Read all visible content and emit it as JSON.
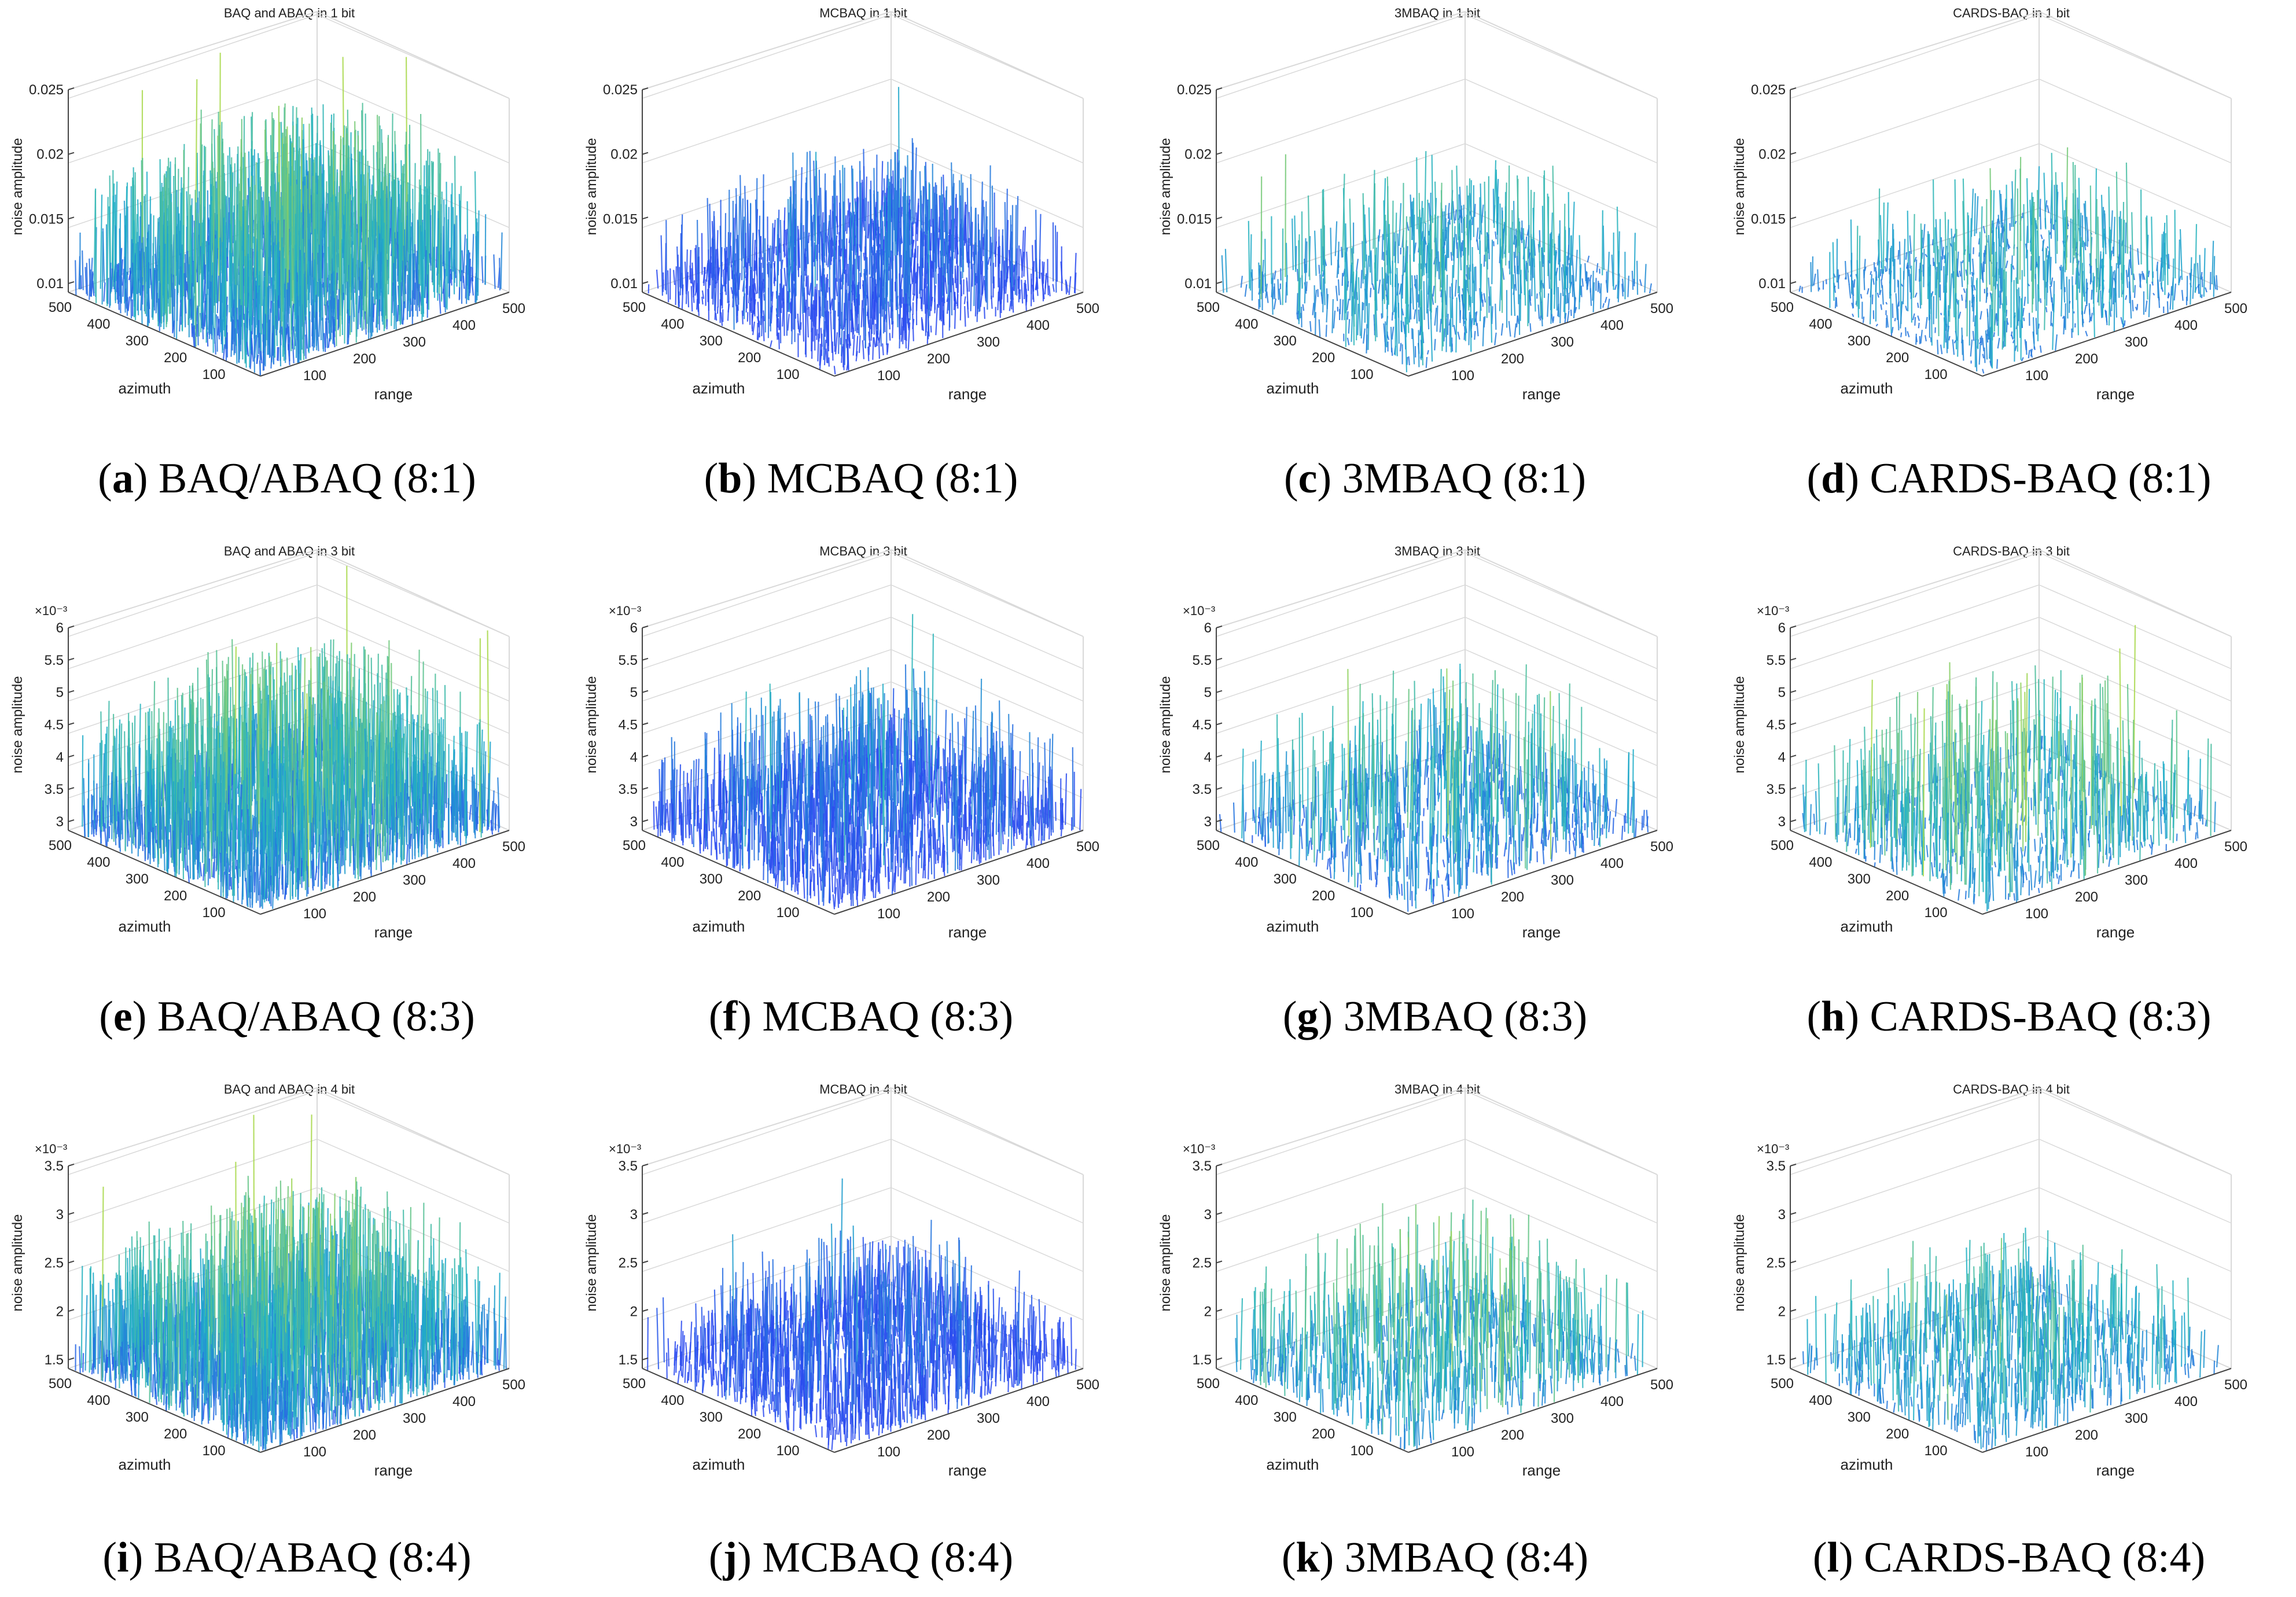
{
  "figure": {
    "colors": {
      "low": "#2b4bf0",
      "mid": "#1fb1c6",
      "high": "#a8d84a",
      "axis": "#444444",
      "grid": "#d9d9d9"
    },
    "axis_labels": {
      "x": "range",
      "y": "azimuth",
      "z": "noise amplitude"
    },
    "x_ticks": [
      "100",
      "200",
      "300",
      "400",
      "500"
    ],
    "y_ticks": [
      "100",
      "200",
      "300",
      "400",
      "500"
    ],
    "rows": [
      {
        "exponent": "",
        "z_ticks": [
          "0.01",
          "0.015",
          "0.02",
          "0.025"
        ],
        "panels": [
          {
            "letter": "a",
            "caption": "BAQ/ABAQ (8:1)",
            "title": "BAQ and ABAQ in 1 bit"
          },
          {
            "letter": "b",
            "caption": "MCBAQ (8:1)",
            "title": "MCBAQ in 1 bit"
          },
          {
            "letter": "c",
            "caption": "3MBAQ (8:1)",
            "title": "3MBAQ in 1 bit"
          },
          {
            "letter": "d",
            "caption": "CARDS-BAQ (8:1)",
            "title": "CARDS-BAQ in 1 bit"
          }
        ]
      },
      {
        "exponent": "×10⁻³",
        "z_ticks": [
          "3",
          "3.5",
          "4",
          "4.5",
          "5",
          "5.5",
          "6"
        ],
        "panels": [
          {
            "letter": "e",
            "caption": "BAQ/ABAQ (8:3)",
            "title": "BAQ and ABAQ in 3 bit"
          },
          {
            "letter": "f",
            "caption": "MCBAQ (8:3)",
            "title": "MCBAQ in 3 bit"
          },
          {
            "letter": "g",
            "caption": "3MBAQ (8:3)",
            "title": "3MBAQ in 3 bit"
          },
          {
            "letter": "h",
            "caption": "CARDS-BAQ (8:3)",
            "title": "CARDS-BAQ in 3 bit"
          }
        ]
      },
      {
        "exponent": "×10⁻³",
        "z_ticks": [
          "1.5",
          "2",
          "2.5",
          "3",
          "3.5"
        ],
        "panels": [
          {
            "letter": "i",
            "caption": "BAQ/ABAQ (8:4)",
            "title": "BAQ and ABAQ in 4 bit"
          },
          {
            "letter": "j",
            "caption": "MCBAQ (8:4)",
            "title": "MCBAQ in 4 bit"
          },
          {
            "letter": "k",
            "caption": "3MBAQ (8:4)",
            "title": "3MBAQ in 4 bit"
          },
          {
            "letter": "l",
            "caption": "CARDS-BAQ (8:4)",
            "title": "CARDS-BAQ in 4 bit"
          }
        ]
      }
    ]
  },
  "chart_data": [
    {
      "type": "surface",
      "title": "BAQ and ABAQ in 1 bit",
      "xlabel": "range",
      "ylabel": "azimuth",
      "zlabel": "noise amplitude",
      "xlim": [
        0,
        500
      ],
      "ylim": [
        0,
        500
      ],
      "zlim": [
        0.01,
        0.025
      ],
      "z_base": 0.012,
      "z_peak": 0.025,
      "density": "dense",
      "color": "blue-green"
    },
    {
      "type": "surface",
      "title": "MCBAQ in 1 bit",
      "xlabel": "range",
      "ylabel": "azimuth",
      "zlabel": "noise amplitude",
      "xlim": [
        0,
        500
      ],
      "ylim": [
        0,
        500
      ],
      "zlim": [
        0.01,
        0.025
      ],
      "z_base": 0.0115,
      "z_peak": 0.0205,
      "density": "medium",
      "color": "blue"
    },
    {
      "type": "surface",
      "title": "3MBAQ in 1 bit",
      "xlabel": "range",
      "ylabel": "azimuth",
      "zlabel": "noise amplitude",
      "xlim": [
        0,
        500
      ],
      "ylim": [
        0,
        500
      ],
      "zlim": [
        0.01,
        0.025
      ],
      "z_base": 0.011,
      "z_peak": 0.0195,
      "density": "sparse",
      "color": "cyan-green"
    },
    {
      "type": "surface",
      "title": "CARDS-BAQ in 1 bit",
      "xlabel": "range",
      "ylabel": "azimuth",
      "zlabel": "noise amplitude",
      "xlim": [
        0,
        500
      ],
      "ylim": [
        0,
        500
      ],
      "zlim": [
        0.01,
        0.025
      ],
      "z_base": 0.0105,
      "z_peak": 0.0195,
      "density": "sparse",
      "color": "cyan"
    },
    {
      "type": "surface",
      "title": "BAQ and ABAQ in 3 bit",
      "xlabel": "range",
      "ylabel": "azimuth",
      "zlabel": "noise amplitude",
      "zscale": "×10⁻³",
      "xlim": [
        0,
        500
      ],
      "ylim": [
        0,
        500
      ],
      "zlim": [
        3,
        6
      ],
      "z_base": 3.5,
      "z_peak": 6.0,
      "density": "dense",
      "color": "blue-green"
    },
    {
      "type": "surface",
      "title": "MCBAQ in 3 bit",
      "xlabel": "range",
      "ylabel": "azimuth",
      "zlabel": "noise amplitude",
      "zscale": "×10⁻³",
      "xlim": [
        0,
        500
      ],
      "ylim": [
        0,
        500
      ],
      "zlim": [
        3,
        6
      ],
      "z_base": 3.5,
      "z_peak": 5.4,
      "density": "medium",
      "color": "blue"
    },
    {
      "type": "surface",
      "title": "3MBAQ in 3 bit",
      "xlabel": "range",
      "ylabel": "azimuth",
      "zlabel": "noise amplitude",
      "zscale": "×10⁻³",
      "xlim": [
        0,
        500
      ],
      "ylim": [
        0,
        500
      ],
      "zlim": [
        3,
        6
      ],
      "z_base": 3.3,
      "z_peak": 5.6,
      "density": "sparse",
      "color": "blue-cyan"
    },
    {
      "type": "surface",
      "title": "CARDS-BAQ in 3 bit",
      "xlabel": "range",
      "ylabel": "azimuth",
      "zlabel": "noise amplitude",
      "zscale": "×10⁻³",
      "xlim": [
        0,
        500
      ],
      "ylim": [
        0,
        500
      ],
      "zlim": [
        3,
        6
      ],
      "z_base": 3.2,
      "z_peak": 5.6,
      "density": "sparse",
      "color": "cyan"
    },
    {
      "type": "surface",
      "title": "BAQ and ABAQ in 4 bit",
      "xlabel": "range",
      "ylabel": "azimuth",
      "zlabel": "noise amplitude",
      "zscale": "×10⁻³",
      "xlim": [
        0,
        500
      ],
      "ylim": [
        0,
        500
      ],
      "zlim": [
        1.5,
        3.5
      ],
      "z_base": 1.8,
      "z_peak": 3.5,
      "density": "dense",
      "color": "blue-green"
    },
    {
      "type": "surface",
      "title": "MCBAQ in 4 bit",
      "xlabel": "range",
      "ylabel": "azimuth",
      "zlabel": "noise amplitude",
      "zscale": "×10⁻³",
      "xlim": [
        0,
        500
      ],
      "ylim": [
        0,
        500
      ],
      "zlim": [
        1.5,
        3.5
      ],
      "z_base": 1.8,
      "z_peak": 2.8,
      "density": "medium",
      "color": "blue"
    },
    {
      "type": "surface",
      "title": "3MBAQ in 4 bit",
      "xlabel": "range",
      "ylabel": "azimuth",
      "zlabel": "noise amplitude",
      "zscale": "×10⁻³",
      "xlim": [
        0,
        500
      ],
      "ylim": [
        0,
        500
      ],
      "zlim": [
        1.5,
        3.5
      ],
      "z_base": 1.75,
      "z_peak": 3.2,
      "density": "sparse",
      "color": "cyan-green"
    },
    {
      "type": "surface",
      "title": "CARDS-BAQ in 4 bit",
      "xlabel": "range",
      "ylabel": "azimuth",
      "zlabel": "noise amplitude",
      "zscale": "×10⁻³",
      "xlim": [
        0,
        500
      ],
      "ylim": [
        0,
        500
      ],
      "zlim": [
        1.5,
        3.5
      ],
      "z_base": 1.75,
      "z_peak": 2.8,
      "density": "sparse",
      "color": "cyan"
    }
  ]
}
